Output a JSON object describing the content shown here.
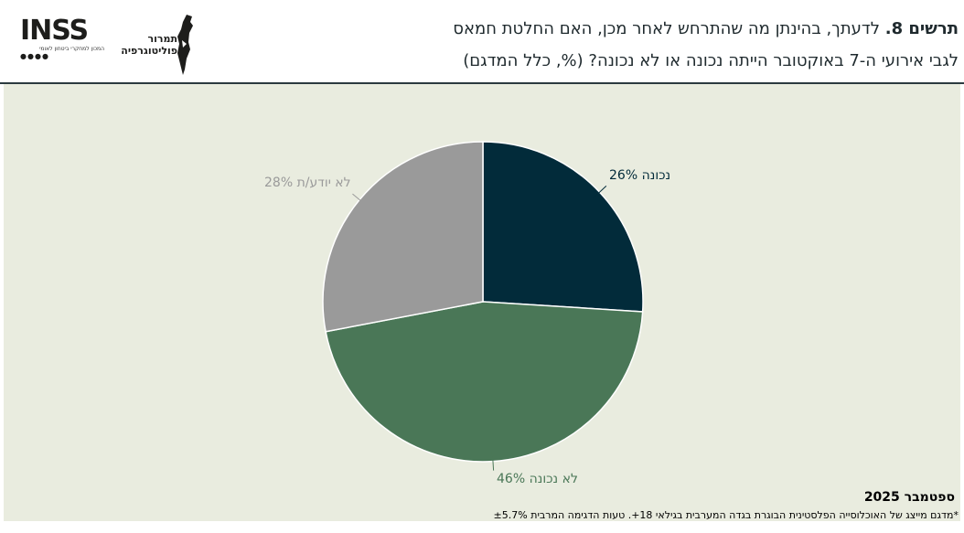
{
  "header": {
    "figure_label": "תרשים 8.",
    "title_line1": "לדעתך, בהינתן מה שהתרחש לאחר מכן, האם החלטת חמאס",
    "title_line2": "לגבי אירועי ה-7 באוקטובר הייתה נכונה או לא נכונה? (%, כלל המדגם)"
  },
  "logos": {
    "inss_word": "INSS",
    "inss_subtitle": "המכון למחקרי ביטחון לאומי",
    "map_text": "תמרור פוליטוגרפיה"
  },
  "chart_data": {
    "type": "pie",
    "unit": "%",
    "slices": [
      {
        "label": "נכונה",
        "value": 26,
        "text": "נכונה 26%",
        "color": "#022b3a",
        "label_color": "#022b3a"
      },
      {
        "label": "לא נכונה",
        "value": 46,
        "text": "לא נכונה 46%",
        "color": "#4a7757",
        "label_color": "#4a7757"
      },
      {
        "label": "לא יודע/ת",
        "value": 28,
        "text": "לא יודע/ת 28%",
        "color": "#9a9a9a",
        "label_color": "#9a9a9a"
      }
    ],
    "start_angle_deg": 0,
    "direction": "clockwise"
  },
  "footer": {
    "date": "ספטמבר 2025",
    "note": "*מדגם מייצג של האוכלוסייה הפלסטינית הבוגרת בגדה המערבית בגילאי 18+. טעות הדגימה המרבית ±5.7%"
  }
}
